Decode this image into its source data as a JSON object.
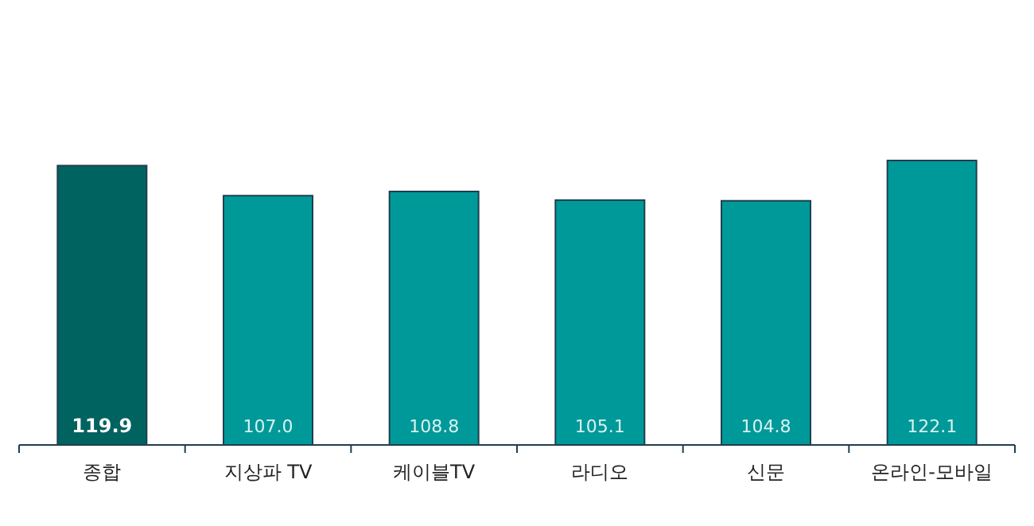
{
  "chart_data": {
    "type": "bar",
    "categories": [
      "종합",
      "지상파 TV",
      "케이블TV",
      "라디오",
      "신문",
      "온라인-모바일"
    ],
    "values": [
      119.9,
      107.0,
      108.8,
      105.1,
      104.8,
      122.1
    ],
    "colors": [
      "#00635f",
      "#009999",
      "#009999",
      "#009999",
      "#009999",
      "#009999"
    ],
    "value_labels": [
      "119.9",
      "107.0",
      "108.8",
      "105.1",
      "104.8",
      "122.1"
    ],
    "grid": false,
    "legend": false
  }
}
